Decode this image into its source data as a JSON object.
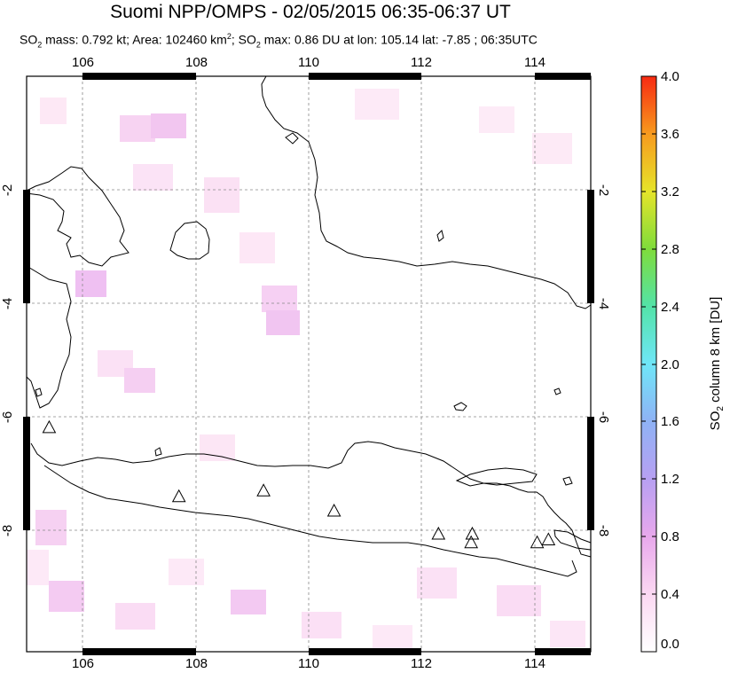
{
  "title": "Suomi NPP/OMPS - 02/05/2015 06:35-06:37 UT",
  "subtitle": {
    "so2_mass_label": "SO",
    "so2_mass_rest": " mass: 0.792 kt; Area: 102460 km",
    "area_sup": "2",
    "so2_max_label": "; SO",
    "so2_max_rest": " max: 0.86 DU at lon: 105.14 lat: -7.85 ; 06:35UTC",
    "sub2": "2"
  },
  "map": {
    "lon_range": [
      105,
      115
    ],
    "lat_range": [
      -10,
      0
    ],
    "x_ticks": [
      "106",
      "108",
      "110",
      "112",
      "114"
    ],
    "y_ticks": [
      "-2",
      "-4",
      "-6",
      "-8"
    ],
    "volcanoes": [
      {
        "lon": 105.4,
        "lat": -6.1
      },
      {
        "lon": 107.7,
        "lat": -7.3
      },
      {
        "lon": 109.2,
        "lat": -7.2
      },
      {
        "lon": 110.45,
        "lat": -7.55
      },
      {
        "lon": 112.3,
        "lat": -7.95
      },
      {
        "lon": 112.9,
        "lat": -7.95
      },
      {
        "lon": 112.88,
        "lat": -8.1
      },
      {
        "lon": 114.05,
        "lat": -8.1
      },
      {
        "lon": 114.25,
        "lat": -8.05
      }
    ]
  },
  "colorbar": {
    "ticks": [
      "4.0",
      "3.6",
      "3.2",
      "2.8",
      "2.4",
      "2.0",
      "1.6",
      "1.2",
      "0.8",
      "0.4",
      "0.0"
    ],
    "title_pre": "SO",
    "title_sub": "2",
    "title_post": " column 8 km [DU]",
    "range": [
      0,
      4
    ]
  }
}
